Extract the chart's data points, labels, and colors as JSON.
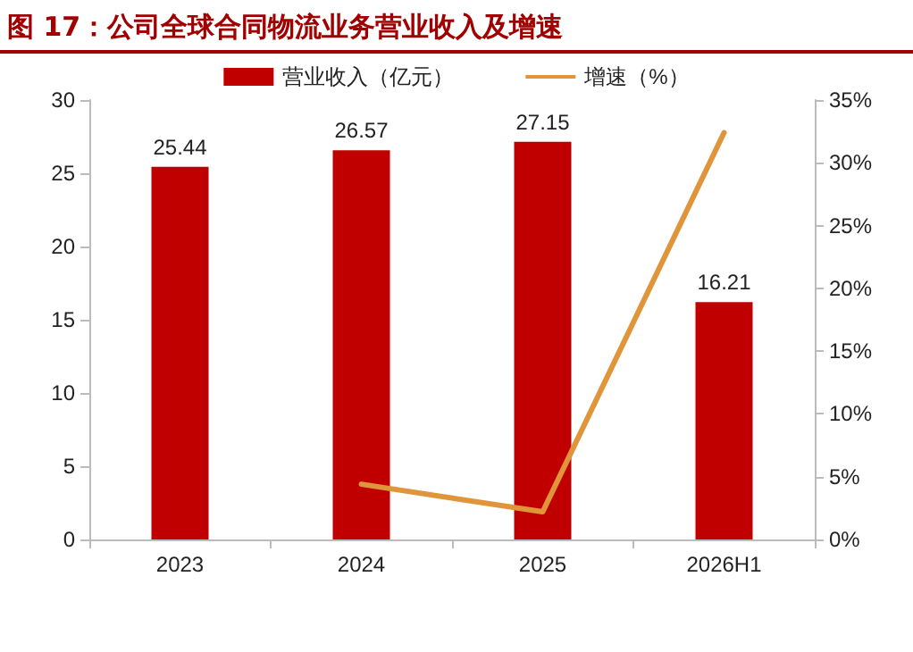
{
  "chart_data": {
    "type": "bar",
    "title": "图 17：公司全球合同物流业务营业收入及增速",
    "categories": [
      "2023",
      "2024",
      "2025",
      "2026H1"
    ],
    "series": [
      {
        "name": "营业收入（亿元）",
        "color": "#c00000",
        "values": [
          25.44,
          26.57,
          27.15,
          16.21
        ],
        "data_labels": true
      },
      {
        "name": "增速（%）",
        "type": "line",
        "axis": "y2",
        "color": "#e0953a",
        "values": [
          null,
          4.4,
          2.2,
          32.4
        ]
      }
    ],
    "ylim": [
      0,
      30
    ],
    "yticks": [
      0,
      5,
      10,
      15,
      20,
      25,
      30
    ],
    "y2lim": [
      0,
      35
    ],
    "y2ticks": [
      {
        "value": 0,
        "label": "0%"
      },
      {
        "value": 5,
        "label": "5%"
      },
      {
        "value": 10,
        "label": "10%"
      },
      {
        "value": 15,
        "label": "15%"
      },
      {
        "value": 20,
        "label": "20%"
      },
      {
        "value": 25,
        "label": "25%"
      },
      {
        "value": 30,
        "label": "30%"
      },
      {
        "value": 35,
        "label": "35%"
      }
    ],
    "legend": "top",
    "grid": false,
    "marker": "none"
  }
}
